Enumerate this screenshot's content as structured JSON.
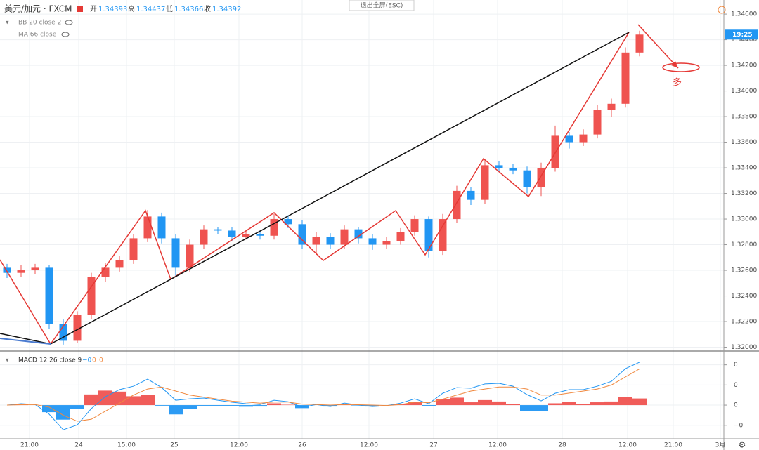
{
  "header": {
    "symbol": "美元/加元 · FXCM",
    "ohlc": [
      {
        "label": "开",
        "value": 1.34393
      },
      {
        "label": "高",
        "value": 1.34437
      },
      {
        "label": "低",
        "value": 1.34366
      },
      {
        "label": "收",
        "value": 1.34392
      }
    ],
    "indicators": [
      "BB 20 close 2",
      "MA 66 close"
    ],
    "exit_button": "退出全屏(ESC)"
  },
  "chart_data": [
    {
      "type": "candlestick",
      "up_color": "#ef5350",
      "down_color": "#2196f3",
      "x": [
        1,
        3,
        5,
        7,
        9,
        11,
        13,
        15,
        17,
        19,
        21,
        23,
        25,
        27,
        29,
        31,
        33,
        35,
        37,
        39,
        41,
        43,
        45,
        47,
        49,
        51,
        53,
        55,
        57,
        59,
        61,
        63,
        65,
        67,
        69,
        71,
        73,
        75,
        77,
        79,
        81,
        83,
        85,
        87,
        89,
        91
      ],
      "open": [
        1.3262,
        1.3258,
        1.326,
        1.3262,
        1.3218,
        1.3205,
        1.3225,
        1.3255,
        1.3262,
        1.3268,
        1.3285,
        1.3302,
        1.3285,
        1.3262,
        1.328,
        1.3292,
        1.3291,
        1.3286,
        1.3288,
        1.3287,
        1.33,
        1.3296,
        1.328,
        1.3286,
        1.328,
        1.3292,
        1.3285,
        1.328,
        1.3283,
        1.329,
        1.33,
        1.3275,
        1.33,
        1.3322,
        1.3315,
        1.3342,
        1.334,
        1.3338,
        1.3325,
        1.334,
        1.3365,
        1.336,
        1.3366,
        1.3385,
        1.339,
        1.343
      ],
      "high": [
        1.3265,
        1.3264,
        1.3265,
        1.3264,
        1.3222,
        1.3228,
        1.3258,
        1.3266,
        1.3271,
        1.3288,
        1.3307,
        1.3305,
        1.3288,
        1.3284,
        1.3295,
        1.3294,
        1.3294,
        1.3291,
        1.3291,
        1.3304,
        1.3303,
        1.3299,
        1.329,
        1.3289,
        1.3295,
        1.3294,
        1.3288,
        1.3286,
        1.3293,
        1.3303,
        1.3302,
        1.3304,
        1.3326,
        1.3325,
        1.3347,
        1.3345,
        1.3343,
        1.3341,
        1.3344,
        1.3373,
        1.3368,
        1.337,
        1.3389,
        1.3394,
        1.3434,
        1.3447
      ],
      "low": [
        1.3254,
        1.3255,
        1.3257,
        1.3214,
        1.3202,
        1.3203,
        1.3222,
        1.3251,
        1.3259,
        1.3265,
        1.3282,
        1.3281,
        1.3255,
        1.3259,
        1.3277,
        1.3288,
        1.3283,
        1.3284,
        1.3284,
        1.3284,
        1.3293,
        1.3277,
        1.3272,
        1.3277,
        1.3277,
        1.3281,
        1.3276,
        1.3277,
        1.328,
        1.3287,
        1.327,
        1.3272,
        1.3297,
        1.3311,
        1.3312,
        1.3337,
        1.3335,
        1.332,
        1.3318,
        1.3337,
        1.3355,
        1.3357,
        1.3363,
        1.338,
        1.3387,
        1.3427
      ],
      "close": [
        1.3258,
        1.326,
        1.3262,
        1.3218,
        1.3205,
        1.3225,
        1.3255,
        1.3262,
        1.3268,
        1.3285,
        1.3302,
        1.3285,
        1.3262,
        1.328,
        1.3292,
        1.3291,
        1.3286,
        1.3288,
        1.3287,
        1.33,
        1.3296,
        1.328,
        1.3286,
        1.328,
        1.3292,
        1.3285,
        1.328,
        1.3283,
        1.329,
        1.33,
        1.3275,
        1.33,
        1.3322,
        1.3315,
        1.3342,
        1.334,
        1.3338,
        1.3325,
        1.334,
        1.3365,
        1.336,
        1.3366,
        1.3385,
        1.339,
        1.343,
        1.3444
      ],
      "xlim": [
        0,
        103
      ],
      "xticks": [
        {
          "value": 4.2,
          "label": "21:00"
        },
        {
          "value": 11.2,
          "label": "24"
        },
        {
          "value": 18,
          "label": "15:00"
        },
        {
          "value": 24.8,
          "label": "25"
        },
        {
          "value": 34,
          "label": "12:00"
        },
        {
          "value": 43,
          "label": "26"
        },
        {
          "value": 52.5,
          "label": "12:00"
        },
        {
          "value": 61.7,
          "label": "27"
        },
        {
          "value": 70.8,
          "label": "12:00"
        },
        {
          "value": 80,
          "label": "28"
        },
        {
          "value": 89.3,
          "label": "12:00"
        },
        {
          "value": 95.8,
          "label": "21:00"
        },
        {
          "value": 102.5,
          "label": "3月"
        }
      ],
      "ylim": [
        1.3197,
        1.3471
      ],
      "yticks": [
        {
          "value": 1.32,
          "label": "1.32000"
        },
        {
          "value": 1.322,
          "label": "1.32200"
        },
        {
          "value": 1.324,
          "label": "1.32400"
        },
        {
          "value": 1.326,
          "label": "1.32600"
        },
        {
          "value": 1.328,
          "label": "1.32800"
        },
        {
          "value": 1.33,
          "label": "1.33000"
        },
        {
          "value": 1.332,
          "label": "1.33200"
        },
        {
          "value": 1.334,
          "label": "1.33400"
        },
        {
          "value": 1.336,
          "label": "1.33600"
        },
        {
          "value": 1.338,
          "label": "1.33800"
        },
        {
          "value": 1.34,
          "label": "1.34000"
        },
        {
          "value": 1.342,
          "label": "1.34200"
        },
        {
          "value": 1.344,
          "label": "1.34400"
        },
        {
          "value": 1.346,
          "label": "1.34600"
        }
      ],
      "grid": true,
      "last_label": "19:25",
      "annotation": "多"
    },
    {
      "type": "macd",
      "title": "MACD 12 26 close 9",
      "legend_values": [
        "−0",
        "0",
        "0"
      ],
      "x": [
        1,
        3,
        5,
        7,
        9,
        11,
        13,
        15,
        17,
        19,
        21,
        23,
        25,
        27,
        29,
        31,
        33,
        35,
        37,
        39,
        41,
        43,
        45,
        47,
        49,
        51,
        53,
        55,
        57,
        59,
        61,
        63,
        65,
        67,
        69,
        71,
        73,
        75,
        77,
        79,
        81,
        83,
        85,
        87,
        89,
        91
      ],
      "histogram": {
        "up_color": "#ef5350",
        "down_color": "#2196f3",
        "values": [
          0,
          5e-05,
          0,
          -0.00035,
          -0.00072,
          -0.00018,
          0.00053,
          0.00072,
          0.00067,
          0.00044,
          0.00049,
          -3e-05,
          -0.00046,
          -0.00019,
          -5e-05,
          -6e-05,
          -6e-05,
          -8e-05,
          -7e-05,
          9e-05,
          2e-05,
          -0.00015,
          0,
          -7e-05,
          7e-05,
          -2e-05,
          -7e-05,
          -1e-05,
          7e-05,
          0.00016,
          -5e-05,
          0.00029,
          0.00037,
          0.00014,
          0.00025,
          0.00018,
          4e-05,
          -0.00028,
          -0.00029,
          9e-05,
          0.00017,
          7e-05,
          0.00014,
          0.00018,
          0.00041,
          0.00033
        ]
      },
      "series": [
        {
          "color": "#2196f3",
          "values": [
            0,
            7e-05,
            3e-05,
            -0.00045,
            -0.00122,
            -0.00098,
            -0.00017,
            0.00042,
            0.00077,
            0.00094,
            0.00129,
            0.00087,
            0.00024,
            0.00031,
            0.00035,
            0.00024,
            0.00014,
            7e-05,
            3e-05,
            0.00024,
            0.00017,
            -0.0001,
            3e-05,
            -7e-05,
            0.0001,
            0,
            -7e-05,
            -3e-05,
            0.0001,
            0.00031,
            7e-05,
            0.00059,
            0.00087,
            0.00084,
            0.00105,
            0.00108,
            0.00094,
            0.00052,
            0.00021,
            0.00059,
            0.00077,
            0.00077,
            0.00094,
            0.00118,
            0.00181,
            0.00213
          ]
        },
        {
          "color": "#f0883e",
          "values": [
            0,
            2e-05,
            3e-05,
            -0.0001,
            -0.0005,
            -0.0008,
            -0.0007,
            -0.0003,
            0.0001,
            0.0005,
            0.0008,
            0.0009,
            0.0007,
            0.0005,
            0.0004,
            0.0003,
            0.0002,
            0.00015,
            0.0001,
            0.00015,
            0.00015,
            5e-05,
            3e-05,
            0,
            3e-05,
            2e-05,
            0,
            -2e-05,
            3e-05,
            0.00015,
            0.00012,
            0.0003,
            0.0005,
            0.0007,
            0.0008,
            0.0009,
            0.0009,
            0.0008,
            0.0005,
            0.0005,
            0.0006,
            0.0007,
            0.0008,
            0.001,
            0.0014,
            0.0018
          ]
        }
      ],
      "ylim": [
        -0.00167,
        0.00258
      ],
      "yticks": [
        {
          "value": 0.002,
          "label": "0"
        },
        {
          "value": 0.001,
          "label": "0"
        },
        0,
        {
          "value": -0.001,
          "label": "−0"
        }
      ]
    }
  ]
}
